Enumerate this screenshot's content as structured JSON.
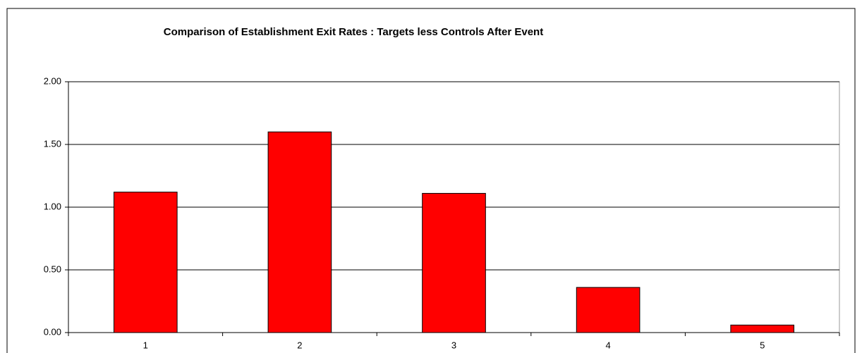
{
  "chart_data": {
    "type": "bar",
    "title": "Comparison of Establishment Exit Rates :  Targets less  Controls After Event",
    "categories": [
      "1",
      "2",
      "3",
      "4",
      "5"
    ],
    "values": [
      1.12,
      1.6,
      1.11,
      0.36,
      0.06
    ],
    "color": "#ff0000",
    "ylim": [
      0,
      2
    ],
    "yticks": [
      {
        "value": 0,
        "label": "0.00"
      },
      {
        "value": 0.5,
        "label": "0.50"
      },
      {
        "value": 1,
        "label": "1.00"
      },
      {
        "value": 1.5,
        "label": "1.50"
      },
      {
        "value": 2,
        "label": "2.00"
      }
    ],
    "grid": true
  }
}
